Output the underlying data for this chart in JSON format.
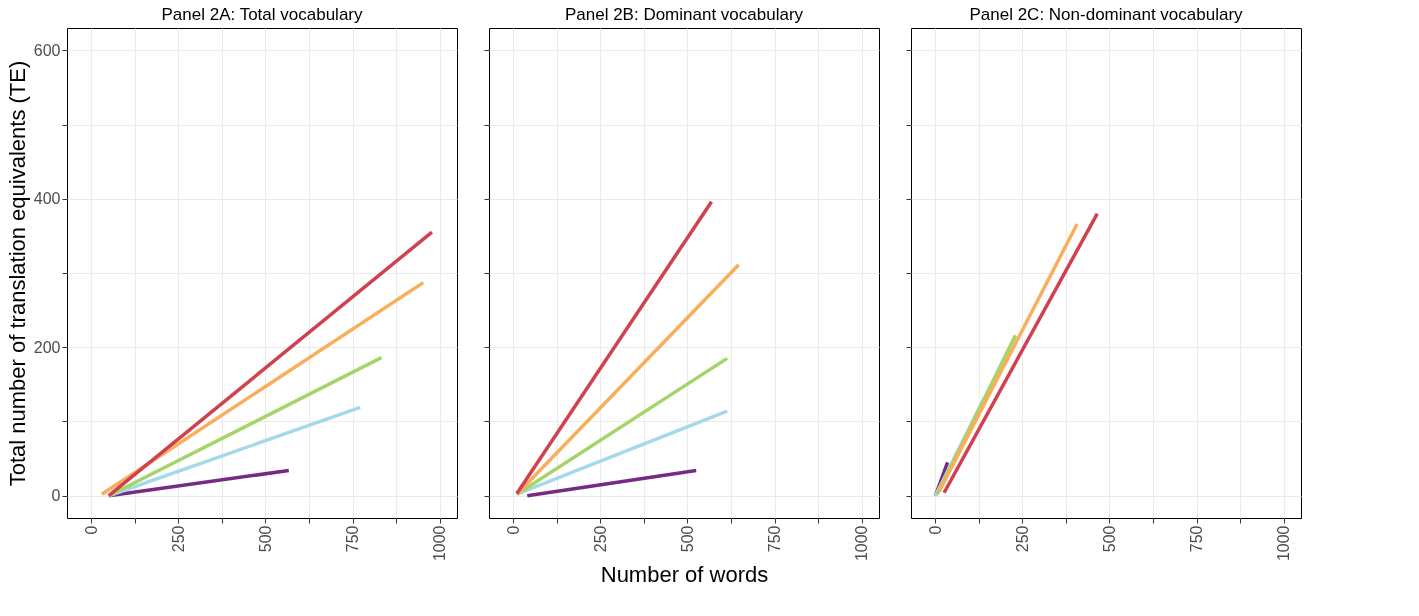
{
  "chart_data": [
    {
      "type": "line",
      "title": "Panel 2A: Total vocabulary",
      "ylabel": "Total number of translation equivalents (TE)",
      "xlim": [
        -70,
        1050
      ],
      "ylim": [
        -30,
        630
      ],
      "xticks": [
        0,
        {
          "value": 125,
          "label": null
        },
        250,
        {
          "value": 375,
          "label": null
        },
        500,
        {
          "value": 625,
          "label": null
        },
        750,
        {
          "value": 875,
          "label": null
        },
        1000
      ],
      "yticks": [
        0,
        {
          "value": 100,
          "label": null
        },
        200,
        {
          "value": 300,
          "label": null
        },
        400,
        {
          "value": 500,
          "label": null
        },
        600
      ],
      "grid": true,
      "line_style": "solid",
      "series": [
        {
          "color": "#762a83",
          "x": [
            50,
            567
          ],
          "values": [
            0,
            34
          ]
        },
        {
          "color": "#a6d9e8",
          "x": [
            50,
            772
          ],
          "values": [
            0,
            119
          ]
        },
        {
          "color": "#a5d46a",
          "x": [
            50,
            833
          ],
          "values": [
            0,
            186
          ]
        },
        {
          "color": "#f9ae5c",
          "x": [
            30,
            953
          ],
          "values": [
            2,
            287
          ]
        },
        {
          "color": "#d1404f",
          "x": [
            50,
            978
          ],
          "values": [
            0,
            355
          ]
        }
      ]
    },
    {
      "type": "line",
      "title": "Panel 2B: Dominant vocabulary",
      "xlabel": "Number of words",
      "xlim": [
        -70,
        1050
      ],
      "ylim": [
        -30,
        630
      ],
      "xticks": [
        0,
        {
          "value": 125,
          "label": null
        },
        250,
        {
          "value": 375,
          "label": null
        },
        500,
        {
          "value": 625,
          "label": null
        },
        750,
        {
          "value": 875,
          "label": null
        },
        1000
      ],
      "yticks": [
        0,
        {
          "value": 100,
          "label": null
        },
        200,
        {
          "value": 300,
          "label": null
        },
        400,
        {
          "value": 500,
          "label": null
        },
        600
      ],
      "grid": true,
      "tick_labels": "x",
      "line_style": "solid",
      "series": [
        {
          "color": "#762a83",
          "x": [
            40,
            525
          ],
          "values": [
            0,
            34
          ]
        },
        {
          "color": "#a6d9e8",
          "x": [
            10,
            614
          ],
          "values": [
            2,
            114
          ]
        },
        {
          "color": "#a5d46a",
          "x": [
            10,
            614
          ],
          "values": [
            2,
            185
          ]
        },
        {
          "color": "#f9ae5c",
          "x": [
            10,
            647
          ],
          "values": [
            2,
            311
          ]
        },
        {
          "color": "#d1404f",
          "x": [
            10,
            569
          ],
          "values": [
            3,
            396
          ]
        }
      ]
    },
    {
      "type": "line",
      "title": "Panel 2C: Non-dominant vocabulary",
      "xlim": [
        -70,
        1050
      ],
      "ylim": [
        -30,
        630
      ],
      "xticks": [
        0,
        {
          "value": 125,
          "label": null
        },
        250,
        {
          "value": 375,
          "label": null
        },
        500,
        {
          "value": 625,
          "label": null
        },
        750,
        {
          "value": 875,
          "label": null
        },
        1000
      ],
      "yticks": [
        0,
        {
          "value": 100,
          "label": null
        },
        200,
        {
          "value": 300,
          "label": null
        },
        400,
        {
          "value": 500,
          "label": null
        },
        600
      ],
      "grid": true,
      "tick_labels": "x",
      "line_style": "solid",
      "series": [
        {
          "color": "#762a83",
          "x": [
            0,
            35
          ],
          "values": [
            0,
            45
          ]
        },
        {
          "color": "#a6d9e8",
          "x": [
            0,
            141
          ],
          "values": [
            0,
            132
          ]
        },
        {
          "color": "#a5d46a",
          "x": [
            5,
            230
          ],
          "values": [
            2,
            216
          ]
        },
        {
          "color": "#f9ae5c",
          "x": [
            10,
            407
          ],
          "values": [
            5,
            366
          ]
        },
        {
          "color": "#d1404f",
          "x": [
            25,
            465
          ],
          "values": [
            4,
            380
          ]
        }
      ]
    }
  ]
}
